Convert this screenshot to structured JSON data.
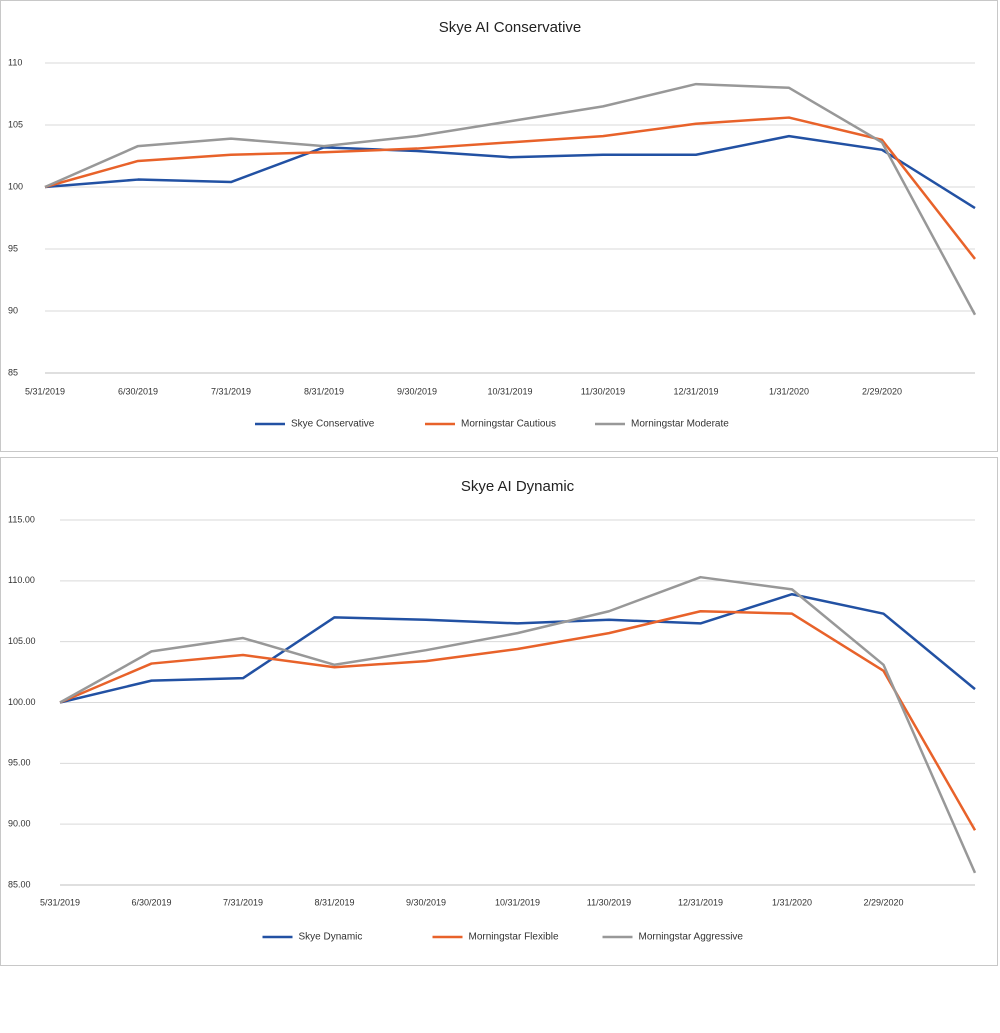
{
  "chart_data": [
    {
      "type": "line",
      "title": "Skye AI Conservative",
      "categories": [
        "5/31/2019",
        "6/30/2019",
        "7/31/2019",
        "8/31/2019",
        "9/30/2019",
        "10/31/2019",
        "11/30/2019",
        "12/31/2019",
        "1/31/2020",
        "2/29/2020",
        null
      ],
      "series": [
        {
          "name": "Skye Conservative",
          "color": "#2251a3",
          "values": [
            100,
            100.6,
            100.4,
            103.2,
            102.9,
            102.4,
            102.6,
            102.6,
            104.1,
            103.0,
            98.3
          ]
        },
        {
          "name": "Morningstar Cautious",
          "color": "#e8622a",
          "values": [
            100,
            102.1,
            102.6,
            102.8,
            103.1,
            103.6,
            104.1,
            105.1,
            105.6,
            103.8,
            94.2
          ]
        },
        {
          "name": "Morningstar Moderate",
          "color": "#989898",
          "values": [
            100,
            103.3,
            103.9,
            103.3,
            104.1,
            105.3,
            106.5,
            108.3,
            108.0,
            103.6,
            89.7
          ]
        }
      ],
      "ylim": [
        85,
        110
      ],
      "yticks": [
        85,
        90,
        95,
        100,
        105,
        110
      ],
      "grid": true,
      "legend": "bottom"
    },
    {
      "type": "line",
      "title": "Skye AI Dynamic",
      "categories": [
        "5/31/2019",
        "6/30/2019",
        "7/31/2019",
        "8/31/2019",
        "9/30/2019",
        "10/31/2019",
        "11/30/2019",
        "12/31/2019",
        "1/31/2020",
        "2/29/2020",
        null
      ],
      "series": [
        {
          "name": "Skye Dynamic",
          "color": "#2251a3",
          "values": [
            100,
            101.8,
            102.0,
            107.0,
            106.8,
            106.5,
            106.8,
            106.5,
            108.9,
            107.3,
            101.1
          ]
        },
        {
          "name": "Morningstar Flexible",
          "color": "#e8622a",
          "values": [
            100,
            103.2,
            103.9,
            102.9,
            103.4,
            104.4,
            105.7,
            107.5,
            107.3,
            102.6,
            89.5
          ]
        },
        {
          "name": "Morningstar Aggressive",
          "color": "#989898",
          "values": [
            100,
            104.2,
            105.3,
            103.1,
            104.3,
            105.7,
            107.5,
            110.3,
            109.3,
            103.1,
            86.0
          ]
        }
      ],
      "ylim": [
        85,
        115
      ],
      "yticks": [
        {
          "value": 85,
          "label": "85.00"
        },
        {
          "value": 90,
          "label": "90.00"
        },
        {
          "value": 95,
          "label": "95.00"
        },
        {
          "value": 100,
          "label": "100.00"
        },
        {
          "value": 105,
          "label": "105.00"
        },
        {
          "value": 110,
          "label": "110.00"
        },
        {
          "value": 115,
          "label": "115.00"
        }
      ],
      "grid": true,
      "legend": "bottom"
    }
  ]
}
